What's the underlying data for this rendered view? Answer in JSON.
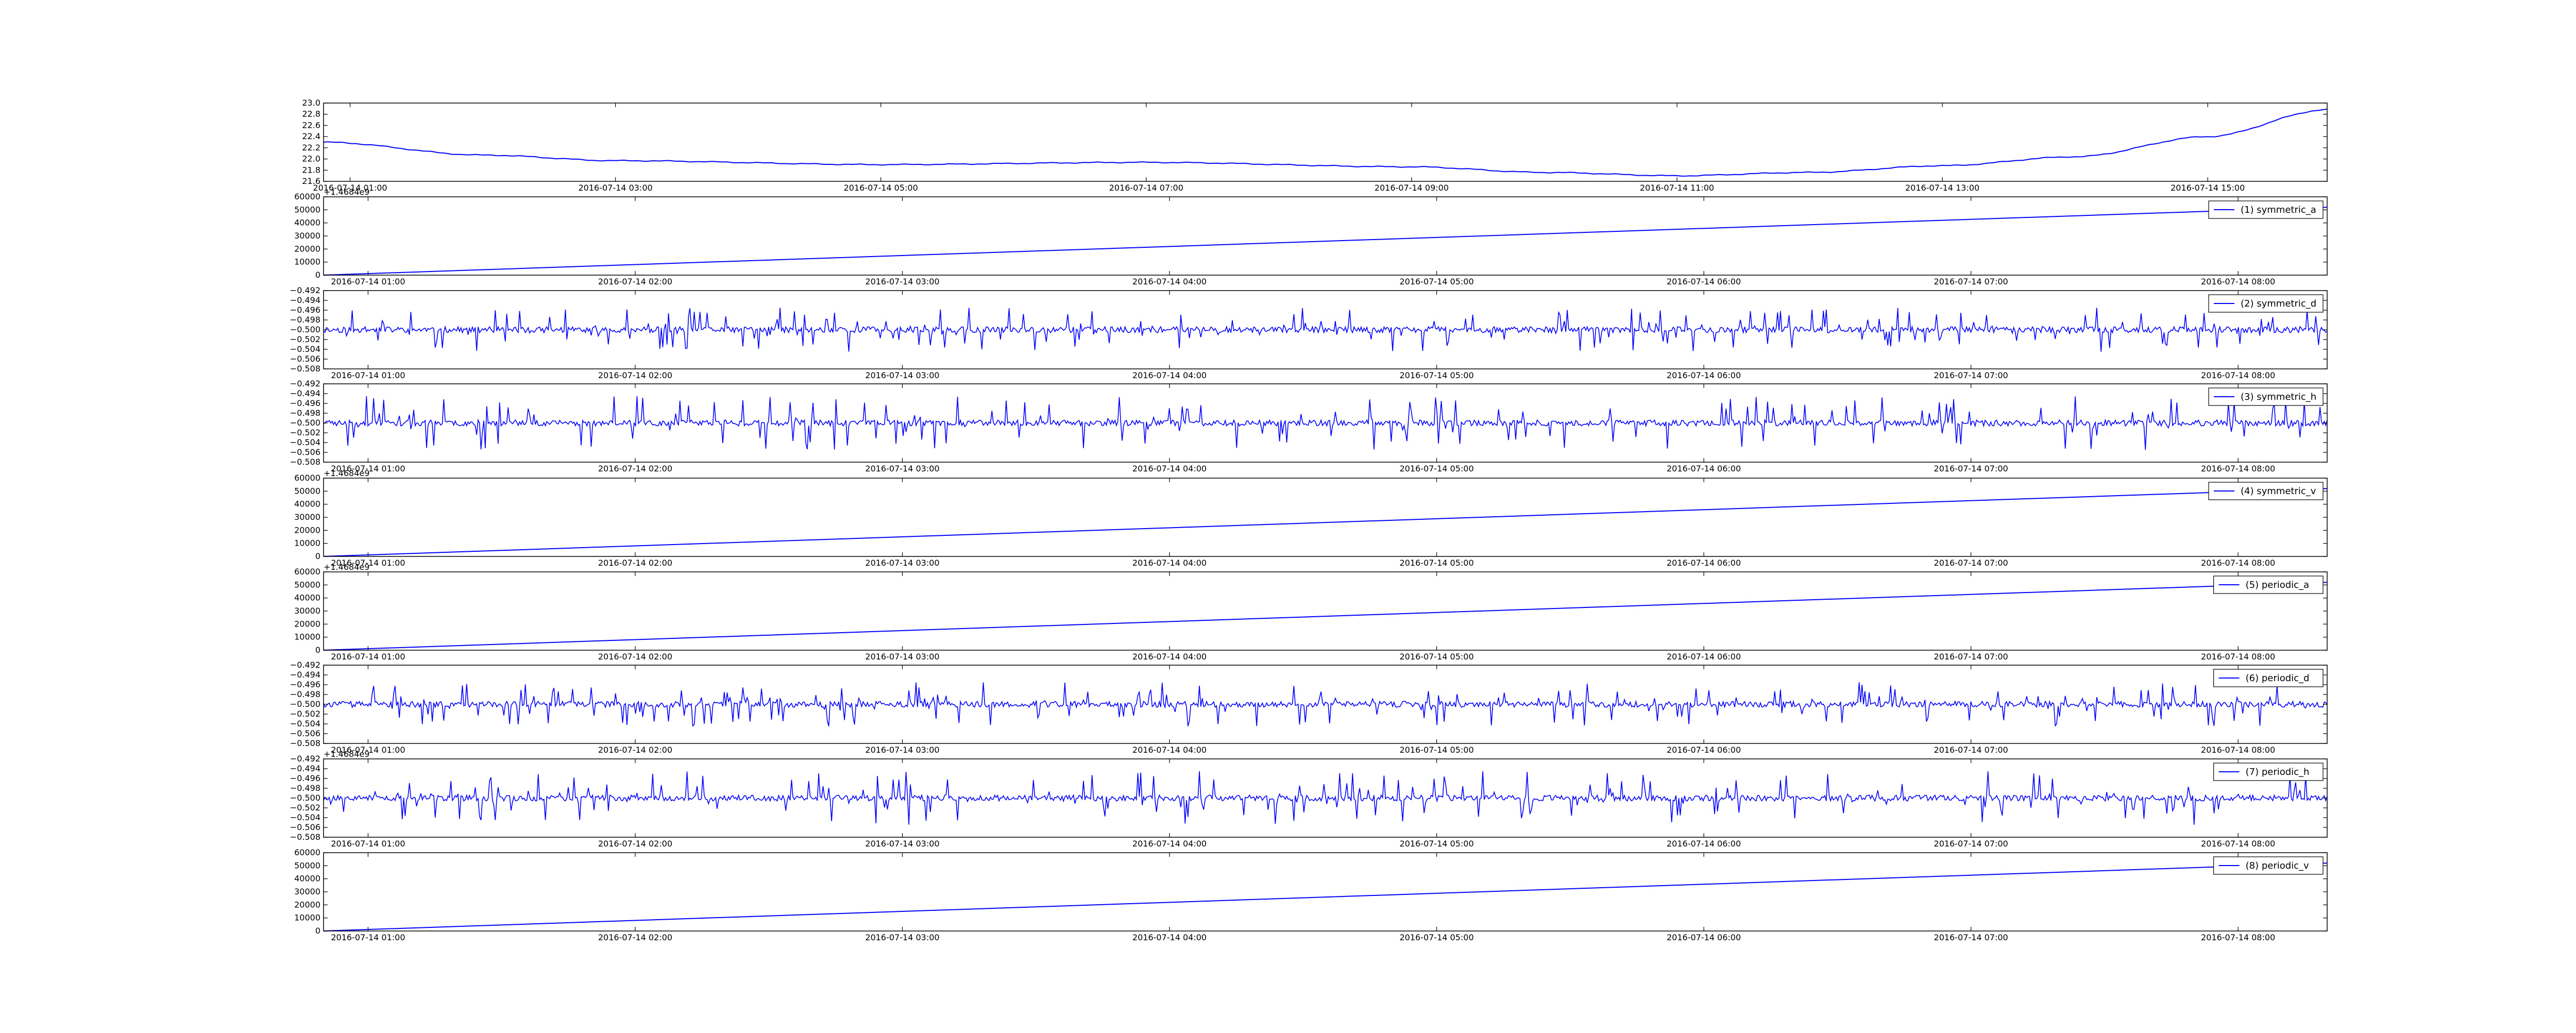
{
  "colors": {
    "line": "#0000ff",
    "axes": "#000000",
    "background": "#ffffff"
  },
  "chart_data": [
    {
      "type": "line",
      "title": "",
      "xlabel": "",
      "ylabel": "",
      "ylim": [
        21.6,
        23.0
      ],
      "yticks": [
        "21.6",
        "21.8",
        "22.0",
        "22.2",
        "22.4",
        "22.6",
        "22.8",
        "23.0"
      ],
      "xlim": [
        "2016-07-14 00:48",
        "2016-07-14 15:54"
      ],
      "xticks": [
        "2016-07-14 01:00",
        "2016-07-14 03:00",
        "2016-07-14 05:00",
        "2016-07-14 07:00",
        "2016-07-14 09:00",
        "2016-07-14 11:00",
        "2016-07-14 13:00",
        "2016-07-14 15:00"
      ],
      "offset_label": "",
      "legend": null,
      "grid": false,
      "series": [
        {
          "style": "smooth",
          "x": [
            "2016-07-14 00:48",
            "2016-07-14 02:00",
            "2016-07-14 03:00",
            "2016-07-14 05:00",
            "2016-07-14 07:00",
            "2016-07-14 09:00",
            "2016-07-14 10:00",
            "2016-07-14 11:00",
            "2016-07-14 12:00",
            "2016-07-14 13:00",
            "2016-07-14 14:00",
            "2016-07-14 15:00",
            "2016-07-14 15:54"
          ],
          "y": [
            22.3,
            22.07,
            21.97,
            21.9,
            21.94,
            21.86,
            21.76,
            21.7,
            21.76,
            21.88,
            22.04,
            22.4,
            22.88
          ]
        }
      ]
    },
    {
      "type": "line",
      "ylim": [
        0,
        60000
      ],
      "yticks": [
        "0",
        "10000",
        "20000",
        "30000",
        "40000",
        "50000",
        "60000"
      ],
      "xlim": [
        "2016-07-14 00:50",
        "2016-07-14 08:20"
      ],
      "xticks": [
        "2016-07-14 01:00",
        "2016-07-14 02:00",
        "2016-07-14 03:00",
        "2016-07-14 04:00",
        "2016-07-14 05:00",
        "2016-07-14 06:00",
        "2016-07-14 07:00",
        "2016-07-14 08:00"
      ],
      "offset_label": "+1.4684e9",
      "legend": "(1) symmetric_a",
      "series": [
        {
          "name": "(1) symmetric_a",
          "style": "linear",
          "x": [
            "2016-07-14 00:50",
            "2016-07-14 08:20"
          ],
          "y": [
            0,
            52000
          ]
        }
      ]
    },
    {
      "type": "line",
      "ylim": [
        -0.508,
        -0.492
      ],
      "yticks": [
        "−0.508",
        "−0.506",
        "−0.504",
        "−0.502",
        "−0.500",
        "−0.498",
        "−0.496",
        "−0.494",
        "−0.492"
      ],
      "xlim": [
        "2016-07-14 00:50",
        "2016-07-14 08:20"
      ],
      "xticks": [
        "2016-07-14 01:00",
        "2016-07-14 02:00",
        "2016-07-14 03:00",
        "2016-07-14 04:00",
        "2016-07-14 05:00",
        "2016-07-14 06:00",
        "2016-07-14 07:00",
        "2016-07-14 08:00"
      ],
      "offset_label": "",
      "legend": "(2) symmetric_d",
      "series": [
        {
          "name": "(2) symmetric_d",
          "style": "noise",
          "baseline": -0.5,
          "amplitude": 0.0045,
          "seed": 11
        }
      ]
    },
    {
      "type": "line",
      "ylim": [
        -0.508,
        -0.492
      ],
      "yticks": [
        "−0.508",
        "−0.506",
        "−0.504",
        "−0.502",
        "−0.500",
        "−0.498",
        "−0.496",
        "−0.494",
        "−0.492"
      ],
      "xlim": [
        "2016-07-14 00:50",
        "2016-07-14 08:20"
      ],
      "xticks": [
        "2016-07-14 01:00",
        "2016-07-14 02:00",
        "2016-07-14 03:00",
        "2016-07-14 04:00",
        "2016-07-14 05:00",
        "2016-07-14 06:00",
        "2016-07-14 07:00",
        "2016-07-14 08:00"
      ],
      "offset_label": "",
      "legend": "(3) symmetric_h",
      "series": [
        {
          "name": "(3) symmetric_h",
          "style": "noise",
          "baseline": -0.5,
          "amplitude": 0.0055,
          "seed": 23
        }
      ]
    },
    {
      "type": "line",
      "ylim": [
        0,
        60000
      ],
      "yticks": [
        "0",
        "10000",
        "20000",
        "30000",
        "40000",
        "50000",
        "60000"
      ],
      "xlim": [
        "2016-07-14 00:50",
        "2016-07-14 08:20"
      ],
      "xticks": [
        "2016-07-14 01:00",
        "2016-07-14 02:00",
        "2016-07-14 03:00",
        "2016-07-14 04:00",
        "2016-07-14 05:00",
        "2016-07-14 06:00",
        "2016-07-14 07:00",
        "2016-07-14 08:00"
      ],
      "offset_label": "+1.4684e9",
      "legend": "(4) symmetric_v",
      "series": [
        {
          "name": "(4) symmetric_v",
          "style": "linear",
          "x": [
            "2016-07-14 00:50",
            "2016-07-14 08:20"
          ],
          "y": [
            0,
            52000
          ]
        }
      ]
    },
    {
      "type": "line",
      "ylim": [
        0,
        60000
      ],
      "yticks": [
        "0",
        "10000",
        "20000",
        "30000",
        "40000",
        "50000",
        "60000"
      ],
      "xlim": [
        "2016-07-14 00:50",
        "2016-07-14 08:20"
      ],
      "xticks": [
        "2016-07-14 01:00",
        "2016-07-14 02:00",
        "2016-07-14 03:00",
        "2016-07-14 04:00",
        "2016-07-14 05:00",
        "2016-07-14 06:00",
        "2016-07-14 07:00",
        "2016-07-14 08:00"
      ],
      "offset_label": "+1.4684e9",
      "legend": "(5) periodic_a",
      "series": [
        {
          "name": "(5) periodic_a",
          "style": "linear",
          "x": [
            "2016-07-14 00:50",
            "2016-07-14 08:20"
          ],
          "y": [
            0,
            52000
          ]
        }
      ]
    },
    {
      "type": "line",
      "ylim": [
        -0.508,
        -0.492
      ],
      "yticks": [
        "−0.508",
        "−0.506",
        "−0.504",
        "−0.502",
        "−0.500",
        "−0.498",
        "−0.496",
        "−0.494",
        "−0.492"
      ],
      "xlim": [
        "2016-07-14 00:50",
        "2016-07-14 08:20"
      ],
      "xticks": [
        "2016-07-14 01:00",
        "2016-07-14 02:00",
        "2016-07-14 03:00",
        "2016-07-14 04:00",
        "2016-07-14 05:00",
        "2016-07-14 06:00",
        "2016-07-14 07:00",
        "2016-07-14 08:00"
      ],
      "offset_label": "",
      "legend": "(6) periodic_d",
      "series": [
        {
          "name": "(6) periodic_d",
          "style": "noise",
          "baseline": -0.5,
          "amplitude": 0.0045,
          "seed": 37
        }
      ]
    },
    {
      "type": "line",
      "ylim": [
        -0.508,
        -0.492
      ],
      "yticks": [
        "−0.508",
        "−0.506",
        "−0.504",
        "−0.502",
        "−0.500",
        "−0.498",
        "−0.496",
        "−0.494",
        "−0.492"
      ],
      "xlim": [
        "2016-07-14 00:50",
        "2016-07-14 08:20"
      ],
      "xticks": [
        "2016-07-14 01:00",
        "2016-07-14 02:00",
        "2016-07-14 03:00",
        "2016-07-14 04:00",
        "2016-07-14 05:00",
        "2016-07-14 06:00",
        "2016-07-14 07:00",
        "2016-07-14 08:00"
      ],
      "offset_label": "+1.4684e9",
      "legend": "(7) periodic_h",
      "series": [
        {
          "name": "(7) periodic_h",
          "style": "noise",
          "baseline": -0.5,
          "amplitude": 0.0055,
          "seed": 53
        }
      ]
    },
    {
      "type": "line",
      "ylim": [
        0,
        60000
      ],
      "yticks": [
        "0",
        "10000",
        "20000",
        "30000",
        "40000",
        "50000",
        "60000"
      ],
      "xlim": [
        "2016-07-14 00:50",
        "2016-07-14 08:20"
      ],
      "xticks": [
        "2016-07-14 01:00",
        "2016-07-14 02:00",
        "2016-07-14 03:00",
        "2016-07-14 04:00",
        "2016-07-14 05:00",
        "2016-07-14 06:00",
        "2016-07-14 07:00",
        "2016-07-14 08:00"
      ],
      "offset_label": "",
      "legend": "(8) periodic_v",
      "series": [
        {
          "name": "(8) periodic_v",
          "style": "linear",
          "x": [
            "2016-07-14 00:50",
            "2016-07-14 08:20"
          ],
          "y": [
            0,
            52000
          ]
        }
      ]
    }
  ]
}
